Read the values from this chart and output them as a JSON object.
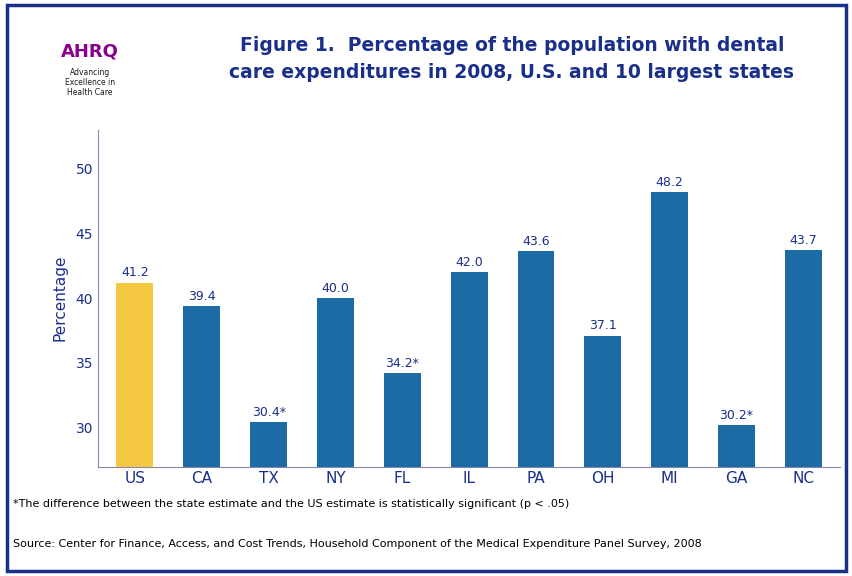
{
  "categories": [
    "US",
    "CA",
    "TX",
    "NY",
    "FL",
    "IL",
    "PA",
    "OH",
    "MI",
    "GA",
    "NC"
  ],
  "values": [
    41.2,
    39.4,
    30.4,
    40.0,
    34.2,
    42.0,
    43.6,
    37.1,
    48.2,
    30.2,
    43.7
  ],
  "labels": [
    "41.2",
    "39.4",
    "30.4*",
    "40.0",
    "34.2*",
    "42.0",
    "43.6",
    "37.1",
    "48.2",
    "30.2*",
    "43.7"
  ],
  "bar_colors": [
    "#F5C842",
    "#1C6BA4",
    "#1C6BA4",
    "#1C6BA4",
    "#1C6BA4",
    "#1C6BA4",
    "#1C6BA4",
    "#1C6BA4",
    "#1C6BA4",
    "#1C6BA4",
    "#1C6BA4"
  ],
  "ylabel": "Percentage",
  "ylim_min": 27,
  "ylim_max": 53,
  "yticks": [
    30,
    35,
    40,
    45,
    50
  ],
  "title_text": "Figure 1.  Percentage of the population with dental\ncare expenditures in 2008, U.S. and 10 largest states",
  "title_color": "#1A2F8A",
  "title_fontsize": 13.5,
  "bar_label_color": "#1A2F8A",
  "bar_label_fontsize": 9,
  "axis_label_color": "#1A2F8A",
  "tick_label_color": "#1A2F8A",
  "tick_fontsize": 10,
  "ylabel_fontsize": 11,
  "spine_color": "#8888AA",
  "footnote1": "*The difference between the state estimate and the US estimate is statistically significant (p < .05)",
  "footnote2": "Source: Center for Finance, Access, and Cost Trends, Household Component of the Medical Expenditure Panel Survey, 2008",
  "footnote_fontsize": 8,
  "outer_border_color": "#1A2F8A",
  "outer_bg_color": "#FFFFFF",
  "header_separator_color": "#1A2F8A",
  "logo_bg_color": "#2A9FD6",
  "plot_bg_color": "#FFFFFF"
}
